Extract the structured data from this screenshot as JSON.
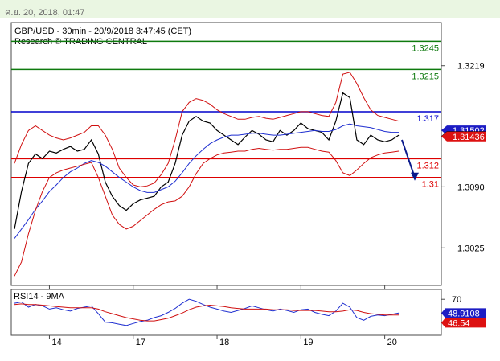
{
  "header": {
    "timestamp": "ค.ย. 20, 2018, 01:47"
  },
  "chart_data": [
    {
      "type": "line",
      "panel": "price",
      "title": "GBP/USD - 30min - 20/9/2018 3:47:45 (CET)",
      "subtitle": "Research © TRADING CENTRAL",
      "ylim": [
        1.2985,
        1.3265
      ],
      "y_ticks": [
        {
          "value": 1.3219,
          "label": "1.3219"
        },
        {
          "value": 1.309,
          "label": "1.3090"
        },
        {
          "value": 1.3025,
          "label": "1.3025"
        }
      ],
      "x_ticks": [
        {
          "label": "14",
          "index": 5
        },
        {
          "label": "17",
          "index": 17
        },
        {
          "label": "18",
          "index": 29
        },
        {
          "label": "19",
          "index": 41
        },
        {
          "label": "20",
          "index": 53
        }
      ],
      "grid": false,
      "series": [
        {
          "name": "",
          "color": "#000000",
          "values": [
            1.3045,
            1.3085,
            1.3115,
            1.3125,
            1.312,
            1.3128,
            1.3126,
            1.313,
            1.3133,
            1.3128,
            1.313,
            1.314,
            1.3125,
            1.3095,
            1.308,
            1.307,
            1.3065,
            1.3072,
            1.3076,
            1.3078,
            1.308,
            1.309,
            1.3095,
            1.3115,
            1.3145,
            1.316,
            1.3165,
            1.316,
            1.3158,
            1.315,
            1.3145,
            1.314,
            1.3135,
            1.3143,
            1.315,
            1.3146,
            1.314,
            1.3138,
            1.315,
            1.3145,
            1.315,
            1.3158,
            1.3152,
            1.315,
            1.3148,
            1.314,
            1.316,
            1.319,
            1.3185,
            1.314,
            1.3135,
            1.3145,
            1.314,
            1.3138,
            1.314,
            1.3145
          ]
        },
        {
          "name": "",
          "color": "#1f2fd0",
          "values": [
            1.3035,
            1.3045,
            1.3055,
            1.3066,
            1.3075,
            1.3085,
            1.3092,
            1.31,
            1.3106,
            1.311,
            1.3115,
            1.3118,
            1.3116,
            1.3112,
            1.3106,
            1.31,
            1.3095,
            1.309,
            1.3086,
            1.3084,
            1.3084,
            1.3087,
            1.309,
            1.3096,
            1.3105,
            1.3115,
            1.3123,
            1.313,
            1.3136,
            1.314,
            1.3143,
            1.3145,
            1.3145,
            1.3146,
            1.3147,
            1.3147,
            1.3146,
            1.3145,
            1.3145,
            1.3146,
            1.3147,
            1.3148,
            1.3149,
            1.315,
            1.3149,
            1.3149,
            1.3151,
            1.3155,
            1.3157,
            1.3155,
            1.3154,
            1.3153,
            1.3151,
            1.3149,
            1.3148,
            1.3148
          ]
        },
        {
          "name": "",
          "color": "#d01010",
          "values": [
            1.3115,
            1.3135,
            1.315,
            1.3155,
            1.315,
            1.3145,
            1.3142,
            1.314,
            1.3142,
            1.3145,
            1.3148,
            1.3155,
            1.3155,
            1.3145,
            1.313,
            1.311,
            1.31,
            1.3092,
            1.309,
            1.3091,
            1.3094,
            1.3103,
            1.3115,
            1.314,
            1.317,
            1.318,
            1.3184,
            1.3182,
            1.3178,
            1.3172,
            1.3168,
            1.3165,
            1.3162,
            1.3162,
            1.3164,
            1.3165,
            1.3163,
            1.3162,
            1.3164,
            1.3166,
            1.3168,
            1.317,
            1.317,
            1.3168,
            1.3166,
            1.3165,
            1.318,
            1.321,
            1.3212,
            1.32,
            1.3185,
            1.3172,
            1.3166,
            1.3164,
            1.3162,
            1.316
          ]
        },
        {
          "name": "",
          "color": "#d01010",
          "values": [
            1.2995,
            1.301,
            1.304,
            1.3065,
            1.3085,
            1.31,
            1.3105,
            1.3108,
            1.311,
            1.3112,
            1.3114,
            1.3116,
            1.31,
            1.308,
            1.306,
            1.305,
            1.3045,
            1.3048,
            1.3054,
            1.306,
            1.3066,
            1.3071,
            1.3074,
            1.3075,
            1.308,
            1.309,
            1.3104,
            1.3115,
            1.312,
            1.3124,
            1.3126,
            1.3127,
            1.3128,
            1.3128,
            1.313,
            1.3131,
            1.313,
            1.3129,
            1.313,
            1.313,
            1.3131,
            1.3132,
            1.3132,
            1.313,
            1.3128,
            1.3127,
            1.3118,
            1.3105,
            1.3102,
            1.3108,
            1.3115,
            1.3121,
            1.3124,
            1.3126,
            1.3127,
            1.3128
          ]
        }
      ],
      "levels": [
        {
          "label": "1.3245",
          "value": 1.3245,
          "color": "#0e7a0e"
        },
        {
          "label": "1.3215",
          "value": 1.3215,
          "color": "#0e7a0e"
        },
        {
          "label": "1.317",
          "value": 1.317,
          "color": "#0000cc"
        },
        {
          "label": "1.312",
          "value": 1.312,
          "color": "#dd0000"
        },
        {
          "label": "1.31",
          "value": 1.31,
          "color": "#dd0000"
        }
      ],
      "price_tags": [
        {
          "label": "1.31502",
          "value": 1.31502,
          "bg": "#1c1cc4",
          "fg": "#ffffff"
        },
        {
          "label": "1.3144",
          "value": 1.3144,
          "bg": "#000000",
          "fg": "#ffffff"
        },
        {
          "label": "1.31436",
          "value": 1.31436,
          "bg": "#dd1111",
          "fg": "#ffffff"
        }
      ],
      "forecast_arrow": {
        "from": 1.314,
        "to": 1.31,
        "color": "#0a1a8c"
      }
    },
    {
      "type": "line",
      "panel": "indicator",
      "title": "RSI14 - 9MA",
      "ylim": [
        15,
        85
      ],
      "y_ticks": [
        {
          "value": 70,
          "label": "70"
        }
      ],
      "grid": false,
      "series": [
        {
          "name": "",
          "color": "#1f2fd0",
          "values": [
            64,
            66,
            58,
            62,
            60,
            55,
            57,
            54,
            52,
            56,
            58,
            60,
            48,
            35,
            34,
            32,
            30,
            33,
            36,
            38,
            42,
            45,
            50,
            56,
            64,
            70,
            67,
            62,
            58,
            55,
            52,
            50,
            53,
            56,
            60,
            57,
            54,
            52,
            55,
            53,
            50,
            54,
            55,
            50,
            47,
            45,
            52,
            64,
            58,
            42,
            38,
            44,
            46,
            45,
            47,
            49
          ]
        },
        {
          "name": "",
          "color": "#d01010",
          "values": [
            62,
            63,
            62,
            62,
            61,
            60,
            59,
            58,
            57,
            57,
            57,
            57,
            55,
            51,
            48,
            45,
            42,
            40,
            38,
            37,
            37,
            39,
            41,
            45,
            49,
            54,
            58,
            60,
            61,
            60,
            59,
            57,
            56,
            55,
            55,
            55,
            55,
            54,
            54,
            54,
            53,
            53,
            53,
            53,
            52,
            51,
            51,
            52,
            54,
            53,
            50,
            48,
            47,
            46,
            46,
            46
          ]
        }
      ],
      "price_tags": [
        {
          "label": "48.9108",
          "value": 48.9108,
          "bg": "#1c1cc4",
          "fg": "#ffffff"
        },
        {
          "label": "46.54",
          "value": 46.54,
          "bg": "#dd1111",
          "fg": "#ffffff"
        }
      ]
    }
  ]
}
